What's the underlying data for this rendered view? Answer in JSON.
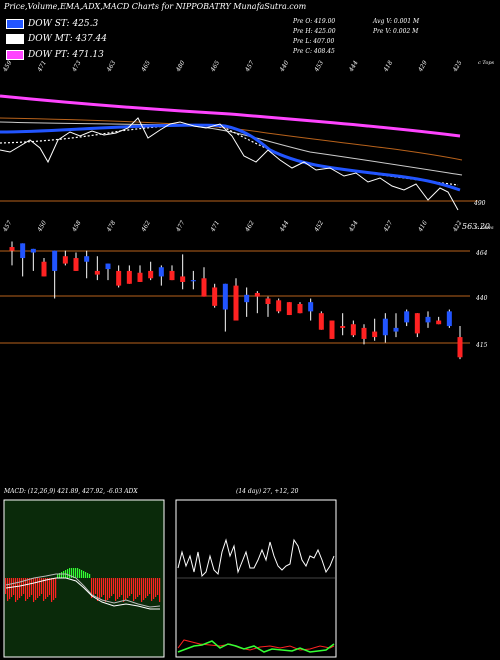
{
  "header": {
    "title": "Price,Volume,EMA,ADX,MACD Charts for NIPPOBATRY MunafaSutra.com"
  },
  "legend": [
    {
      "label": "DOW ST: 425.3",
      "color": "#2255ff"
    },
    {
      "label": "DOW MT: 437.44",
      "color": "#ffffff"
    },
    {
      "label": "DOW PT: 471.13",
      "color": "#ff44ff"
    }
  ],
  "info": {
    "prev_open": "Pre   O: 419.00",
    "prev_high": "Pre   H: 425.00",
    "prev_low": "Pre   L: 407.00",
    "prev_close": "Pre   C: 408.45",
    "avg_volume": "Avg V: 0.001 M",
    "prev_volume": "Pre   V: 0.002  M"
  },
  "top_labels": [
    "459",
    "471",
    "473",
    "463",
    "465",
    "480",
    "465",
    "457",
    "440",
    "453",
    "444",
    "418",
    "429",
    "425"
  ],
  "top_right_label": "c Tops",
  "mid_labels": [
    "457",
    "450",
    "458",
    "478",
    "462",
    "477",
    "471",
    "462",
    "444",
    "452",
    "434",
    "427",
    "416",
    "422"
  ],
  "mid_right_label": "c Lows",
  "ema_price_label": "490",
  "candle_axis_labels": [
    "563.20",
    "464",
    "440",
    "415"
  ],
  "macd_title": "MACD: (12,26,9) 421.89, 427.92, -6.03 ADX",
  "adx_title": "(14 day) 27, +12, 20",
  "colors": {
    "background": "#000000",
    "up": "#2255ff",
    "down": "#ff2222",
    "guide": "#b8621b",
    "ema_long": "#ff44ff",
    "macd_panel": "#0a2a0a",
    "histogram_negative": "#ff2222",
    "histogram_positive": "#33ff33"
  },
  "chart_data": {
    "type": "candlestick",
    "ohlc": [
      [
        468,
        471,
        458,
        466
      ],
      [
        462,
        470,
        452,
        470
      ],
      [
        465,
        467,
        455,
        467
      ],
      [
        460,
        462,
        452,
        452
      ],
      [
        455,
        466,
        440,
        466
      ],
      [
        463,
        466,
        458,
        459
      ],
      [
        462,
        465,
        455,
        455
      ],
      [
        460,
        466,
        451,
        463
      ],
      [
        455,
        463,
        450,
        453
      ],
      [
        456,
        459,
        450,
        459
      ],
      [
        455,
        458,
        446,
        447
      ],
      [
        455,
        458,
        448,
        448
      ],
      [
        454,
        458,
        449,
        449
      ],
      [
        455,
        460,
        450,
        451
      ],
      [
        452,
        458,
        447,
        457
      ],
      [
        455,
        458,
        450,
        450
      ],
      [
        452,
        464,
        445,
        449
      ],
      [
        450,
        455,
        445,
        450
      ],
      [
        451,
        457,
        441,
        441
      ],
      [
        446,
        448,
        435,
        436
      ],
      [
        434,
        448,
        422,
        448
      ],
      [
        447,
        451,
        428,
        428
      ],
      [
        438,
        446,
        430,
        442
      ],
      [
        443,
        444,
        432,
        441
      ],
      [
        440,
        441,
        430,
        437
      ],
      [
        439,
        440,
        432,
        433
      ],
      [
        438,
        438,
        431,
        431
      ],
      [
        437,
        438,
        432,
        432
      ],
      [
        433,
        440,
        428,
        438
      ],
      [
        432,
        433,
        423,
        423
      ],
      [
        428,
        428,
        418,
        418
      ],
      [
        425,
        432,
        420,
        424
      ],
      [
        426,
        428,
        419,
        420
      ],
      [
        424,
        426,
        415,
        418
      ],
      [
        422,
        429,
        417,
        419
      ],
      [
        420,
        432,
        416,
        429
      ],
      [
        422,
        432,
        419,
        424
      ],
      [
        427,
        434,
        425,
        433
      ],
      [
        432,
        432,
        419,
        421
      ],
      [
        427,
        433,
        424,
        430
      ],
      [
        428,
        430,
        426,
        426
      ],
      [
        425,
        434,
        424,
        433
      ],
      [
        419,
        425,
        407,
        408
      ]
    ]
  }
}
